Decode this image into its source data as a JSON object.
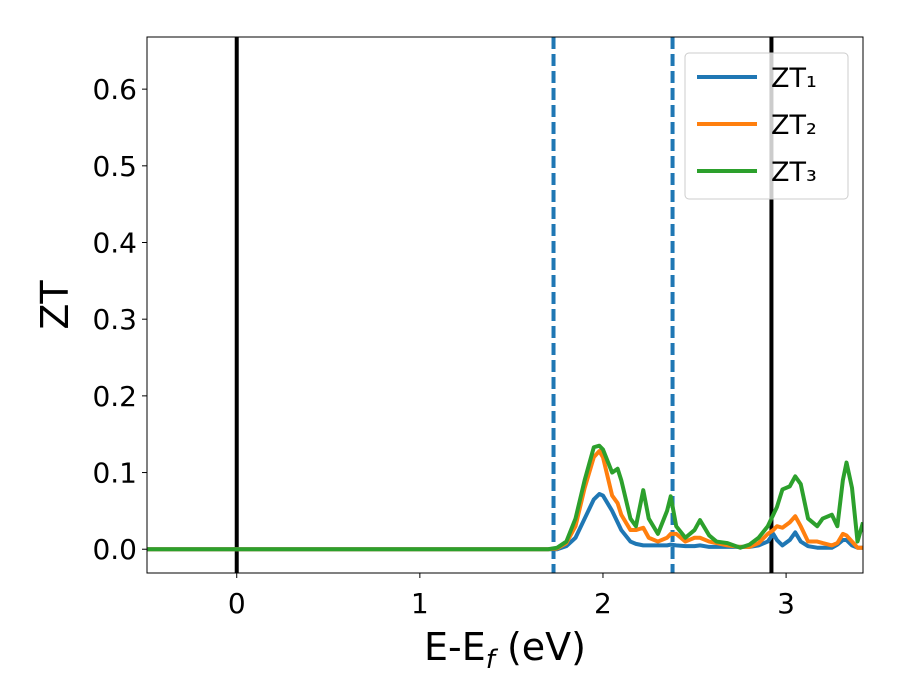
{
  "chart_data": {
    "type": "line",
    "xlabel": {
      "text": "E-E",
      "subscript": "f",
      "suffix": " (eV)"
    },
    "ylabel": "ZT",
    "xlim": [
      -0.49,
      3.42
    ],
    "ylim": [
      -0.031,
      0.668
    ],
    "xticks": [
      0,
      1,
      2,
      3
    ],
    "yticks": [
      {
        "value": 0,
        "label": "0.0"
      },
      0.1,
      0.2,
      0.3,
      0.4,
      0.5,
      0.6
    ],
    "legend": "upper right",
    "vlines": [
      {
        "x": 0,
        "color": "#000000",
        "style": "solid"
      },
      {
        "x": 2.92,
        "color": "#000000",
        "style": "solid"
      },
      {
        "x": 1.73,
        "color": "#1f77b4",
        "style": "dashed"
      },
      {
        "x": 2.38,
        "color": "#1f77b4",
        "style": "dashed"
      }
    ],
    "x": [
      -0.49,
      1.7,
      1.75,
      1.8,
      1.85,
      1.9,
      1.95,
      1.98,
      2.0,
      2.05,
      2.08,
      2.1,
      2.15,
      2.18,
      2.22,
      2.25,
      2.3,
      2.35,
      2.37,
      2.4,
      2.45,
      2.5,
      2.53,
      2.58,
      2.62,
      2.68,
      2.75,
      2.8,
      2.85,
      2.9,
      2.93,
      2.95,
      2.98,
      3.02,
      3.05,
      3.08,
      3.12,
      3.17,
      3.2,
      3.25,
      3.28,
      3.31,
      3.33,
      3.36,
      3.39,
      3.42
    ],
    "series": [
      {
        "name": "ZT₁",
        "color": "#1f77b4",
        "values": [
          0,
          0,
          0,
          0.004,
          0.015,
          0.04,
          0.065,
          0.072,
          0.07,
          0.05,
          0.035,
          0.025,
          0.01,
          0.007,
          0.005,
          0.005,
          0.005,
          0.005,
          0.006,
          0.005,
          0.004,
          0.004,
          0.005,
          0.003,
          0.003,
          0.003,
          0.003,
          0.003,
          0.005,
          0.01,
          0.02,
          0.012,
          0.005,
          0.012,
          0.022,
          0.01,
          0.004,
          0.002,
          0.002,
          0.002,
          0.006,
          0.012,
          0.012,
          0.005,
          0.002,
          0.002
        ]
      },
      {
        "name": "ZT₂",
        "color": "#ff7f0e",
        "values": [
          0,
          0,
          0.001,
          0.008,
          0.03,
          0.08,
          0.12,
          0.128,
          0.12,
          0.07,
          0.06,
          0.045,
          0.025,
          0.025,
          0.028,
          0.015,
          0.01,
          0.015,
          0.02,
          0.02,
          0.01,
          0.015,
          0.015,
          0.01,
          0.008,
          0.005,
          0.003,
          0.003,
          0.008,
          0.02,
          0.025,
          0.03,
          0.028,
          0.035,
          0.043,
          0.03,
          0.01,
          0.01,
          0.008,
          0.005,
          0.008,
          0.02,
          0.018,
          0.01,
          0.002,
          0.002
        ]
      },
      {
        "name": "ZT₃",
        "color": "#2ca02c",
        "values": [
          0,
          0,
          0.002,
          0.01,
          0.04,
          0.09,
          0.133,
          0.135,
          0.13,
          0.1,
          0.105,
          0.09,
          0.04,
          0.03,
          0.077,
          0.04,
          0.02,
          0.05,
          0.069,
          0.03,
          0.015,
          0.025,
          0.038,
          0.018,
          0.01,
          0.008,
          0.002,
          0.006,
          0.015,
          0.03,
          0.045,
          0.055,
          0.078,
          0.082,
          0.095,
          0.085,
          0.04,
          0.03,
          0.04,
          0.045,
          0.03,
          0.09,
          0.113,
          0.08,
          0.01,
          0.035
        ]
      }
    ]
  }
}
